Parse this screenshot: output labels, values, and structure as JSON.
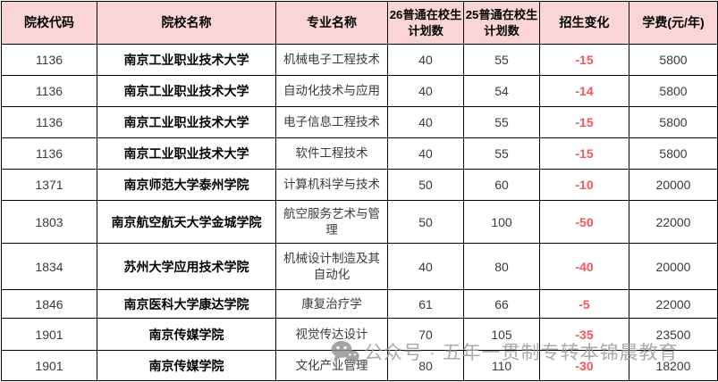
{
  "colors": {
    "header_bg": "#F9D6D5",
    "border": "#000000",
    "negative_red": "#F4555B",
    "text": "#3a3a3a",
    "watermark_gray": "#9c9c9c",
    "page_bg": "#ffffff"
  },
  "table": {
    "headers": [
      "院校代码",
      "院校名称",
      "专业名称",
      "26普通在校生计划数",
      "25普通在校生计划数",
      "招生变化",
      "学费(元/年)"
    ],
    "rows": [
      {
        "code": "1136",
        "college": "南京工业职业技术大学",
        "major": "机械电子工程技术",
        "plan26": "40",
        "plan25": "55",
        "change": "-15",
        "fee": "5800"
      },
      {
        "code": "1136",
        "college": "南京工业职业技术大学",
        "major": "自动化技术与应用",
        "plan26": "40",
        "plan25": "54",
        "change": "-14",
        "fee": "5800"
      },
      {
        "code": "1136",
        "college": "南京工业职业技术大学",
        "major": "电子信息工程技术",
        "plan26": "40",
        "plan25": "55",
        "change": "-15",
        "fee": "5800"
      },
      {
        "code": "1136",
        "college": "南京工业职业技术大学",
        "major": "软件工程技术",
        "plan26": "40",
        "plan25": "55",
        "change": "-15",
        "fee": "5800"
      },
      {
        "code": "1371",
        "college": "南京师范大学泰州学院",
        "major": "计算机科学与技术",
        "plan26": "50",
        "plan25": "60",
        "change": "-10",
        "fee": "20000"
      },
      {
        "code": "1803",
        "college": "南京航空航天大学金城学院",
        "major": "航空服务艺术与管理",
        "plan26": "50",
        "plan25": "100",
        "change": "-50",
        "fee": "22000"
      },
      {
        "code": "1834",
        "college": "苏州大学应用技术学院",
        "major": "机械设计制造及其自动化",
        "plan26": "40",
        "plan25": "80",
        "change": "-40",
        "fee": "20000"
      },
      {
        "code": "1846",
        "college": "南京医科大学康达学院",
        "major": "康复治疗学",
        "plan26": "61",
        "plan25": "66",
        "change": "-5",
        "fee": "22000"
      },
      {
        "code": "1901",
        "college": "南京传媒学院",
        "major": "视觉传达设计",
        "plan26": "70",
        "plan25": "105",
        "change": "-35",
        "fee": "23500"
      },
      {
        "code": "1901",
        "college": "南京传媒学院",
        "major": "文化产业管理",
        "plan26": "80",
        "plan25": "110",
        "change": "-30",
        "fee": "18200"
      }
    ]
  },
  "watermark": {
    "icon": "wechat-icon",
    "text": "公众号 · 五年一贯制专转本锦晨教育"
  }
}
